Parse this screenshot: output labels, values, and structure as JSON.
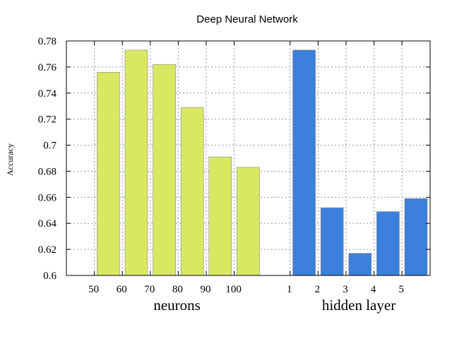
{
  "chart_data": {
    "type": "bar",
    "title": "Deep Neural Network",
    "ylabel": "Accuracy",
    "ylim": [
      0.6,
      0.78
    ],
    "yticks": [
      "0.6",
      "0.62",
      "0.64",
      "0.66",
      "0.68",
      "0.7",
      "0.72",
      "0.74",
      "0.76",
      "0.78"
    ],
    "grid": true,
    "groups": [
      {
        "label": "neurons",
        "color": "#d8e862",
        "categories": [
          "50",
          "60",
          "70",
          "80",
          "90",
          "100"
        ],
        "values": [
          0.756,
          0.773,
          0.762,
          0.729,
          0.691,
          0.683
        ]
      },
      {
        "label": "hidden layer",
        "color": "#3c7fdc",
        "categories": [
          "1",
          "2",
          "3",
          "4",
          "5"
        ],
        "values": [
          0.773,
          0.652,
          0.617,
          0.649,
          0.659
        ]
      }
    ]
  }
}
